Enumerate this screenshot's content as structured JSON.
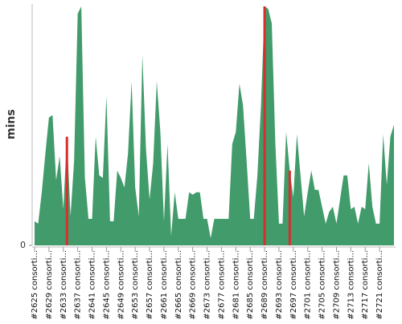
{
  "chart_data": {
    "type": "area",
    "y_label": "mins",
    "color": "#429b6a",
    "highlight_color": "#d62f2f",
    "highlights": [
      9,
      64,
      71
    ],
    "ylim": [
      0,
      100
    ],
    "yticks": [
      0
    ],
    "categories": [
      "#2625 consorti...",
      null,
      null,
      null,
      "#2629 consorti...",
      null,
      null,
      null,
      "#2633 consorti...",
      null,
      null,
      null,
      "#2637 consorti...",
      null,
      null,
      null,
      "#2641 consorti...",
      null,
      null,
      null,
      "#2645 consorti...",
      null,
      null,
      null,
      "#2649 consorti...",
      null,
      null,
      null,
      "#2653 consorti...",
      null,
      null,
      null,
      "#2657 consorti...",
      null,
      null,
      null,
      "#2661 consorti...",
      null,
      null,
      null,
      "#2665 consorti...",
      null,
      null,
      null,
      "#2669 consorti...",
      null,
      null,
      null,
      "#2673 consorti...",
      null,
      null,
      null,
      "#2677 consorti...",
      null,
      null,
      null,
      "#2681 consorti...",
      null,
      null,
      null,
      "#2685 consorti...",
      null,
      null,
      null,
      "#2689 consorti...",
      null,
      null,
      null,
      "#2693 consorti...",
      null,
      null,
      null,
      "#2697 consorti...",
      null,
      null,
      null,
      "#2701 consorti...",
      null,
      null,
      null,
      "#2705 consorti...",
      null,
      null,
      null,
      "#2709 consorti...",
      null,
      null,
      null,
      "#2713 consorti...",
      null,
      null,
      null,
      "#2717 consorti...",
      null,
      null,
      null,
      "#2721 consorti...",
      null,
      null,
      null,
      null
    ],
    "values": [
      10,
      9,
      22,
      38,
      53,
      54,
      27,
      37,
      15,
      45,
      12,
      35,
      96,
      99,
      28,
      11,
      11,
      45,
      29,
      28,
      62,
      10,
      10,
      31,
      28,
      24,
      38,
      68,
      24,
      12,
      79,
      40,
      19,
      34,
      68,
      47,
      10,
      42,
      4,
      22,
      11,
      11,
      11,
      22,
      21,
      22,
      22,
      11,
      11,
      3,
      11,
      11,
      11,
      11,
      11,
      42,
      47,
      67,
      58,
      35,
      11,
      11,
      29,
      58,
      99,
      98,
      92,
      42,
      9,
      9,
      47,
      31,
      20,
      46,
      29,
      12,
      22,
      31,
      23,
      23,
      16,
      9,
      14,
      16,
      9,
      19,
      29,
      29,
      15,
      16,
      9,
      16,
      15,
      34,
      16,
      9,
      9,
      46,
      25,
      45,
      50
    ]
  }
}
